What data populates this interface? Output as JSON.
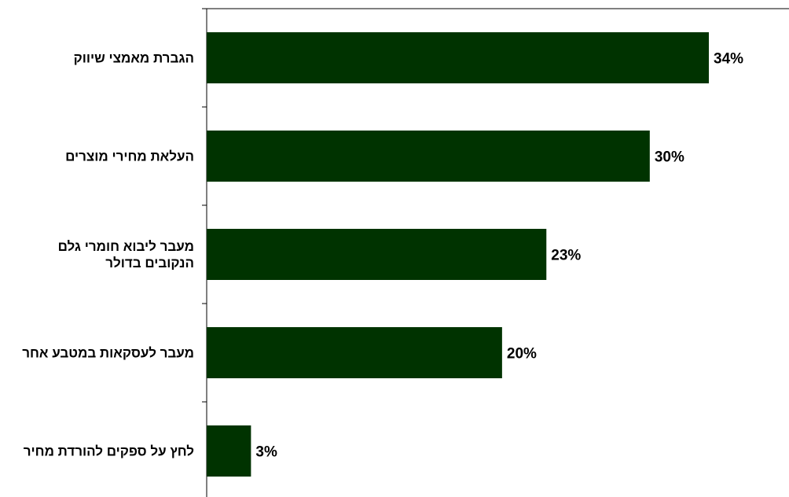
{
  "chart_data": {
    "type": "bar",
    "orientation": "horizontal",
    "categories": [
      [
        "הגברת מאמצי שיווק"
      ],
      [
        "העלאת מחירי מוצרים"
      ],
      [
        "מעבר ליבוא חומרי גלם",
        "הנקובים בדולר"
      ],
      [
        "מעבר לעסקאות במטבע אחר"
      ],
      [
        "לחץ על ספקים להורדת מחיר"
      ]
    ],
    "values": [
      34,
      30,
      23,
      20,
      3
    ],
    "value_labels": [
      "34%",
      "30%",
      "23%",
      "20%",
      "3%"
    ],
    "value_unit": "%",
    "title": "",
    "xlabel": "",
    "ylabel": "",
    "xlim": [
      0,
      100
    ],
    "grid": false,
    "legend": "none",
    "bar_color": "#003300"
  }
}
